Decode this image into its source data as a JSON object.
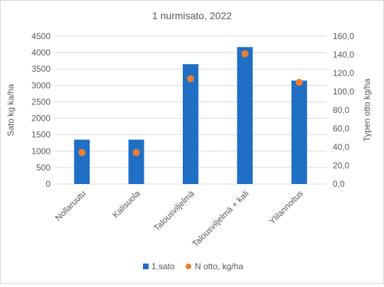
{
  "chart_data": {
    "type": "bar",
    "title": "1 nurmisato, 2022",
    "categories": [
      "Nollaruutu",
      "Kalisuola",
      "Talousviljelmä",
      "Talousviljelmä + kali",
      "Ylilannoitus"
    ],
    "series": [
      {
        "name": "1.sato",
        "type": "bar",
        "axis": "primary",
        "color": "#1f6fc5",
        "values": [
          1350,
          1350,
          3650,
          4170,
          3150
        ]
      },
      {
        "name": "N otto, kg/ha",
        "type": "scatter",
        "axis": "secondary",
        "color": "#ed7d31",
        "values": [
          34,
          34,
          114,
          141,
          110
        ]
      }
    ],
    "ylabel": "Sato kg ka/ha",
    "ylabel_secondary": "Typen otto kg/ha",
    "ylim": [
      0,
      4500
    ],
    "y_ticks": [
      "0",
      "500",
      "1000",
      "1500",
      "2000",
      "2500",
      "3000",
      "3500",
      "4000",
      "4500"
    ],
    "ylim_secondary": [
      0,
      160
    ],
    "y2_ticks": [
      "0,0",
      "20,0",
      "40,0",
      "60,0",
      "80,0",
      "100,0",
      "120,0",
      "140,0",
      "160,0"
    ],
    "grid": true,
    "legend": "bottom"
  }
}
